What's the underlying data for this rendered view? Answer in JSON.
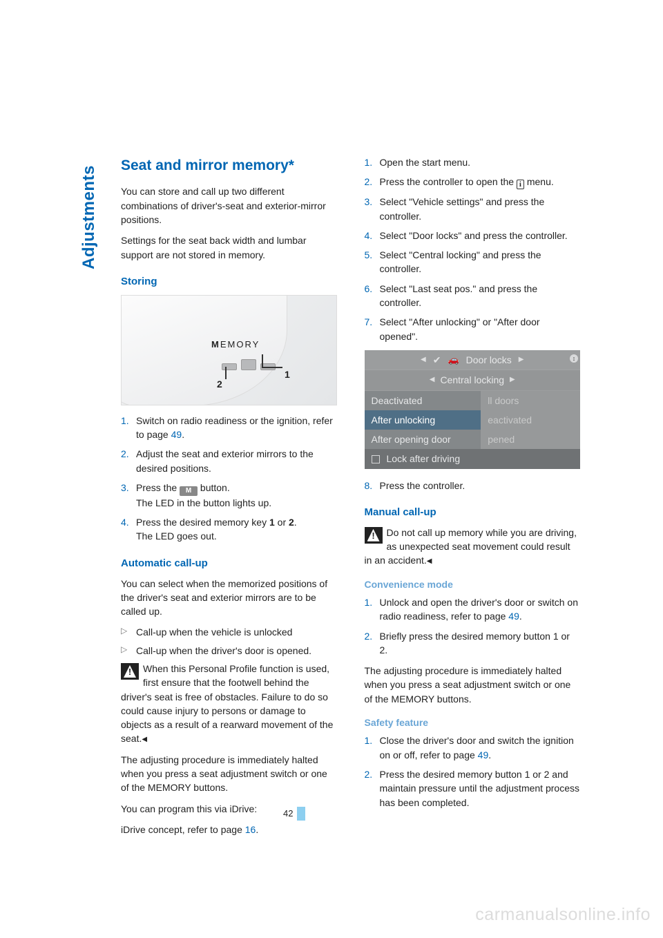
{
  "sidebar": {
    "label": "Adjustments"
  },
  "left": {
    "h1": "Seat and mirror memory*",
    "intro1": "You can store and call up two different combinations of driver's-seat and exterior-mirror positions.",
    "intro2": "Settings for the seat back width and lumbar support are not stored in memory.",
    "storing": {
      "heading": "Storing",
      "figure": {
        "memory_word_bold": "M",
        "memory_word_rest": "EMORY",
        "num1": "1",
        "num2": "2"
      },
      "steps": [
        {
          "num": "1.",
          "text_a": "Switch on radio readiness or the ignition, refer to page ",
          "link": "49",
          "text_b": "."
        },
        {
          "num": "2.",
          "text_a": "Adjust the seat and exterior mirrors to the desired positions."
        },
        {
          "num": "3.",
          "text_a": "Press the ",
          "badge": "M",
          "text_b": " button.",
          "line2": "The LED in the button lights up."
        },
        {
          "num": "4.",
          "text_a": "Press the desired memory key ",
          "b1": "1",
          "mid": " or ",
          "b2": "2",
          "text_b": ".",
          "line2": "The LED goes out."
        }
      ]
    },
    "auto": {
      "heading": "Automatic call-up",
      "p1": "You can select when the memorized positions of the driver's seat and exterior mirrors are to be called up.",
      "bullets": [
        "Call-up when the vehicle is unlocked",
        "Call-up when the driver's door is opened."
      ],
      "warn": "When this Personal Profile function is used, first ensure that the footwell behind the driver's seat is free of obstacles. Failure to do so could cause injury to persons or damage to objects as a result of a rearward movement of the seat.",
      "p2": "The adjusting procedure is immediately halted when you press a seat adjustment switch or one of the MEMORY buttons.",
      "p3": "You can program this via iDrive:",
      "p4_a": "iDrive concept, refer to page ",
      "p4_link": "16",
      "p4_b": "."
    }
  },
  "right": {
    "steps": [
      {
        "num": "1.",
        "text": "Open the start menu."
      },
      {
        "num": "2.",
        "text_a": "Press the controller to open the ",
        "icon": "i",
        "text_b": " menu."
      },
      {
        "num": "3.",
        "text": "Select \"Vehicle settings\" and press the controller."
      },
      {
        "num": "4.",
        "text": "Select \"Door locks\" and press the controller."
      },
      {
        "num": "5.",
        "text": "Select \"Central locking\" and press the controller."
      },
      {
        "num": "6.",
        "text": "Select \"Last seat pos.\" and press the controller."
      },
      {
        "num": "7.",
        "text": "Select \"After unlocking\" or \"After door opened\"."
      }
    ],
    "screen": {
      "top": "Door locks",
      "top2": "Central locking",
      "left_items": [
        "Deactivated",
        "After unlocking",
        "After opening door"
      ],
      "selected_index": 1,
      "right_items": [
        "ll doors",
        "eactivated",
        "pened"
      ],
      "bottom": "Lock after driving"
    },
    "step8": {
      "num": "8.",
      "text": "Press the controller."
    },
    "manual": {
      "heading": "Manual call-up",
      "warn": "Do not call up memory while you are driving, as unexpected seat movement could result in an accident."
    },
    "conv": {
      "heading": "Convenience mode",
      "steps": [
        {
          "num": "1.",
          "text_a": "Unlock and open the driver's door or switch on radio readiness, refer to page ",
          "link": "49",
          "text_b": "."
        },
        {
          "num": "2.",
          "text": "Briefly press the desired memory button 1 or 2."
        }
      ],
      "p": "The adjusting procedure is immediately halted when you press a seat adjustment switch or one of the MEMORY buttons."
    },
    "safety": {
      "heading": "Safety feature",
      "steps": [
        {
          "num": "1.",
          "text_a": "Close the driver's door and switch the ignition on or off, refer to page ",
          "link": "49",
          "text_b": "."
        },
        {
          "num": "2.",
          "text": "Press the desired memory button 1 or 2 and maintain pressure until the adjustment process has been completed."
        }
      ]
    }
  },
  "page_number": "42",
  "watermark": "carmanualsonline.info"
}
